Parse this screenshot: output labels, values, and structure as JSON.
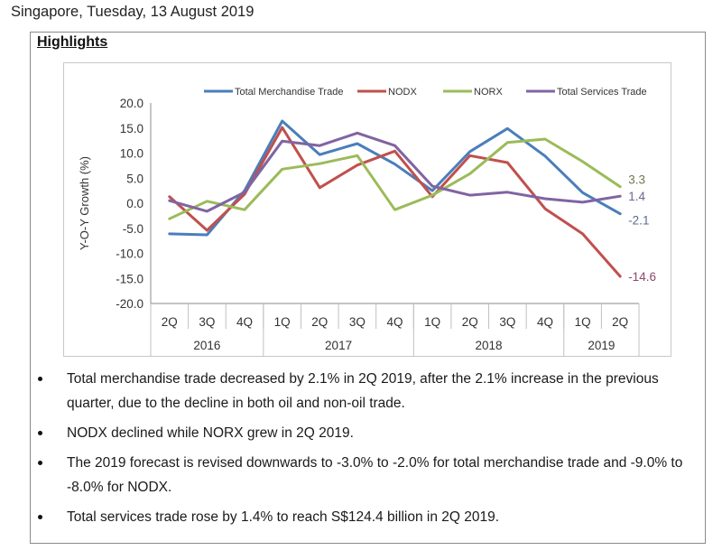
{
  "header": {
    "dateline": "Singapore, Tuesday, 13 August 2019"
  },
  "section": {
    "title": "Highlights"
  },
  "chart_data": {
    "type": "line",
    "title": "",
    "xlabel": "",
    "ylabel": "Y-O-Y Growth (%)",
    "ylim": [
      -20,
      20
    ],
    "yticks": [
      20,
      15,
      10,
      5,
      0,
      -5,
      -10,
      -15,
      -20
    ],
    "ytick_labels": [
      "20.0",
      "15.0",
      "10.0",
      "5.0",
      "0.0",
      "-5.0",
      "-10.0",
      "-15.0",
      "-20.0"
    ],
    "legend_position": "top",
    "categories": [
      "2Q",
      "3Q",
      "4Q",
      "1Q",
      "2Q",
      "3Q",
      "4Q",
      "1Q",
      "2Q",
      "3Q",
      "4Q",
      "1Q",
      "2Q"
    ],
    "year_groups": [
      {
        "label": "2016",
        "count": 3
      },
      {
        "label": "2017",
        "count": 4
      },
      {
        "label": "2018",
        "count": 4
      },
      {
        "label": "2019",
        "count": 2
      }
    ],
    "series": [
      {
        "name": "Total Merchandise Trade",
        "color": "#4a7ebb",
        "label_color": "#5b6d8f",
        "values": [
          -6.1,
          -6.3,
          2.5,
          16.4,
          9.7,
          11.9,
          7.8,
          2.5,
          10.3,
          14.9,
          9.4,
          2.1,
          -2.1
        ],
        "end_label": "-2.1"
      },
      {
        "name": "NODX",
        "color": "#c0504d",
        "label_color": "#8a4a6a",
        "values": [
          1.3,
          -5.4,
          1.8,
          15.1,
          3.1,
          7.6,
          10.4,
          1.3,
          9.5,
          8.1,
          -1.1,
          -6.1,
          -14.6
        ],
        "end_label": "-14.6"
      },
      {
        "name": "NORX",
        "color": "#9bbb59",
        "label_color": "#6f7a4e",
        "values": [
          -3.1,
          0.4,
          -1.3,
          6.8,
          7.9,
          9.5,
          -1.3,
          1.6,
          5.9,
          12.1,
          12.8,
          8.3,
          3.3
        ],
        "end_label": "3.3"
      },
      {
        "name": "Total Services Trade",
        "color": "#8064a2",
        "label_color": "#6f6690",
        "values": [
          0.5,
          -1.6,
          2.2,
          12.4,
          11.5,
          14.0,
          11.5,
          3.4,
          1.6,
          2.2,
          0.9,
          0.2,
          1.4
        ],
        "end_label": "1.4"
      }
    ]
  },
  "bullets": [
    "Total merchandise trade decreased by 2.1% in 2Q 2019, after the 2.1% increase in the previous quarter, due to the decline in both oil and non-oil trade.",
    "NODX declined while NORX grew in 2Q 2019.",
    "The 2019 forecast is revised downwards to -3.0% to -2.0% for total merchandise trade and -9.0% to -8.0% for NODX.",
    "Total services trade rose by 1.4% to reach S$124.4 billion in 2Q 2019."
  ]
}
